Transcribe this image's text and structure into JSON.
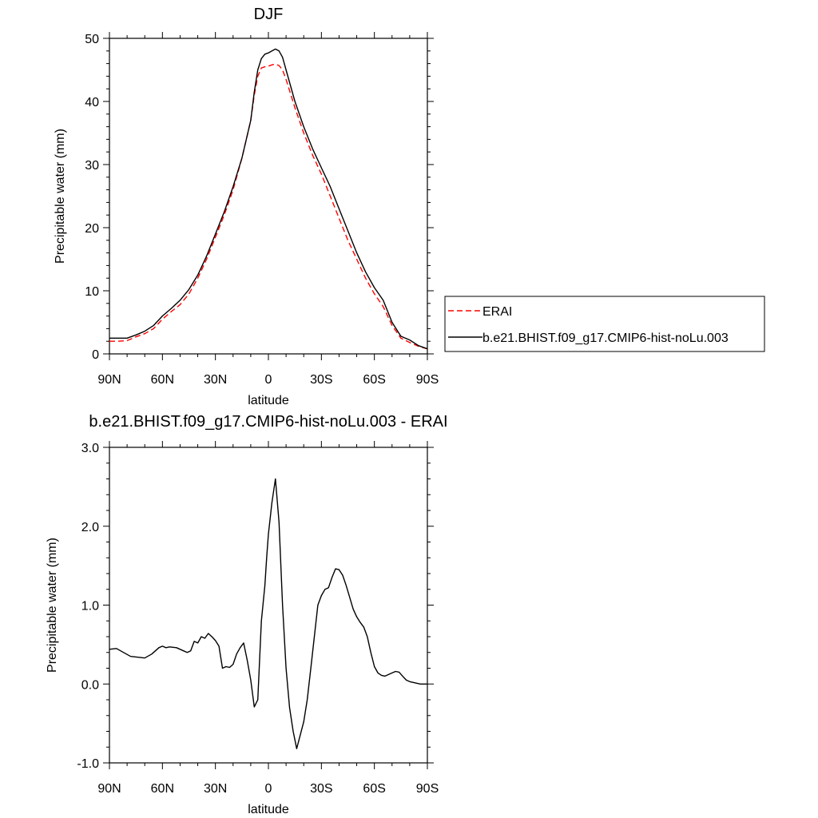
{
  "chart_data": [
    {
      "type": "line",
      "title": "DJF",
      "xlabel": "latitude",
      "ylabel": "Precipitable water (mm)",
      "xlim": [
        90,
        -90
      ],
      "ylim": [
        0,
        50
      ],
      "x_ticks": [
        90,
        60,
        30,
        0,
        -30,
        -60,
        -90
      ],
      "x_tick_labels": [
        "90N",
        "60N",
        "30N",
        "0",
        "30S",
        "60S",
        "90S"
      ],
      "y_ticks": [
        0,
        10,
        20,
        30,
        40,
        50
      ],
      "y_tick_labels": [
        "0",
        "10",
        "20",
        "30",
        "40",
        "50"
      ],
      "legend_position": "right",
      "series": [
        {
          "name": "ERAI",
          "color": "#ff0000",
          "style": "dashed",
          "x": [
            90,
            85,
            80,
            75,
            70,
            65,
            60,
            55,
            50,
            45,
            40,
            35,
            30,
            25,
            20,
            15,
            10,
            8,
            6,
            4,
            2,
            0,
            -2,
            -4,
            -6,
            -8,
            -10,
            -15,
            -20,
            -25,
            -30,
            -35,
            -40,
            -45,
            -50,
            -55,
            -60,
            -65,
            -70,
            -75,
            -80,
            -85,
            -90
          ],
          "values": [
            2.0,
            2.0,
            2.1,
            2.7,
            3.2,
            4.0,
            5.5,
            6.7,
            7.8,
            9.5,
            12.0,
            15.0,
            18.5,
            22.0,
            26.0,
            31.0,
            37.0,
            41.0,
            44.0,
            45.3,
            45.5,
            45.6,
            45.8,
            45.9,
            45.7,
            45.0,
            43.5,
            39.0,
            35.0,
            31.5,
            28.5,
            25.0,
            21.5,
            18.0,
            15.0,
            12.0,
            9.5,
            7.5,
            4.5,
            2.5,
            1.8,
            1.2,
            0.8
          ]
        },
        {
          "name": "b.e21.BHIST.f09_g17.CMIP6-hist-noLu.003",
          "color": "#000000",
          "style": "solid",
          "x": [
            90,
            85,
            80,
            75,
            70,
            65,
            60,
            55,
            50,
            45,
            40,
            35,
            30,
            25,
            20,
            15,
            10,
            8,
            6,
            4,
            2,
            0,
            -2,
            -4,
            -6,
            -8,
            -10,
            -15,
            -20,
            -25,
            -30,
            -35,
            -40,
            -45,
            -50,
            -55,
            -60,
            -65,
            -70,
            -75,
            -80,
            -85,
            -90
          ],
          "values": [
            2.5,
            2.5,
            2.5,
            3.0,
            3.6,
            4.5,
            6.0,
            7.2,
            8.5,
            10.2,
            12.5,
            15.5,
            19.0,
            22.5,
            26.5,
            31.0,
            37.0,
            41.5,
            45.0,
            46.8,
            47.5,
            47.7,
            48.0,
            48.3,
            48.0,
            47.0,
            45.0,
            40.0,
            36.0,
            32.5,
            29.5,
            26.5,
            23.0,
            19.5,
            16.0,
            13.0,
            10.5,
            8.5,
            5.0,
            2.8,
            2.2,
            1.3,
            0.8
          ]
        }
      ]
    },
    {
      "type": "line",
      "title": "b.e21.BHIST.f09_g17.CMIP6-hist-noLu.003 - ERAI",
      "xlabel": "latitude",
      "ylabel": "Precipitable water (mm)",
      "xlim": [
        90,
        -90
      ],
      "ylim": [
        -1.0,
        3.0
      ],
      "x_ticks": [
        90,
        60,
        30,
        0,
        -30,
        -60,
        -90
      ],
      "x_tick_labels": [
        "90N",
        "60N",
        "30N",
        "0",
        "30S",
        "60S",
        "90S"
      ],
      "y_ticks": [
        -1.0,
        0.0,
        1.0,
        2.0,
        3.0
      ],
      "y_tick_labels": [
        "-1.0",
        "0.0",
        "1.0",
        "2.0",
        "3.0"
      ],
      "series": [
        {
          "name": "",
          "color": "#000000",
          "style": "solid",
          "x": [
            90,
            86,
            82,
            78,
            74,
            70,
            66,
            62,
            60,
            58,
            56,
            52,
            48,
            46,
            44,
            42,
            40,
            38,
            36,
            34,
            32,
            30,
            28,
            26,
            24,
            22,
            20,
            18,
            16,
            14,
            12,
            10,
            8,
            6,
            4,
            2,
            1,
            0,
            -1,
            -2,
            -3,
            -4,
            -6,
            -8,
            -10,
            -12,
            -14,
            -16,
            -18,
            -20,
            -22,
            -24,
            -26,
            -28,
            -30,
            -32,
            -34,
            -36,
            -38,
            -40,
            -42,
            -44,
            -46,
            -48,
            -50,
            -52,
            -54,
            -56,
            -58,
            -60,
            -62,
            -64,
            -66,
            -68,
            -70,
            -72,
            -74,
            -76,
            -78,
            -80,
            -82,
            -84,
            -86,
            -88,
            -90
          ],
          "values": [
            0.44,
            0.45,
            0.4,
            0.35,
            0.34,
            0.33,
            0.38,
            0.46,
            0.48,
            0.46,
            0.47,
            0.46,
            0.42,
            0.4,
            0.42,
            0.54,
            0.52,
            0.6,
            0.58,
            0.64,
            0.6,
            0.55,
            0.48,
            0.2,
            0.22,
            0.21,
            0.25,
            0.38,
            0.46,
            0.52,
            0.3,
            0.05,
            -0.29,
            -0.2,
            0.8,
            1.25,
            1.6,
            1.9,
            2.1,
            2.3,
            2.45,
            2.6,
            2.05,
            1.0,
            0.2,
            -0.3,
            -0.6,
            -0.82,
            -0.65,
            -0.48,
            -0.2,
            0.2,
            0.6,
            1.0,
            1.12,
            1.2,
            1.22,
            1.35,
            1.46,
            1.45,
            1.38,
            1.25,
            1.1,
            0.95,
            0.85,
            0.78,
            0.72,
            0.6,
            0.4,
            0.22,
            0.14,
            0.11,
            0.1,
            0.12,
            0.14,
            0.16,
            0.15,
            0.1,
            0.05,
            0.03,
            0.02,
            0.01,
            0.0,
            0.0,
            0.0
          ]
        }
      ]
    }
  ]
}
